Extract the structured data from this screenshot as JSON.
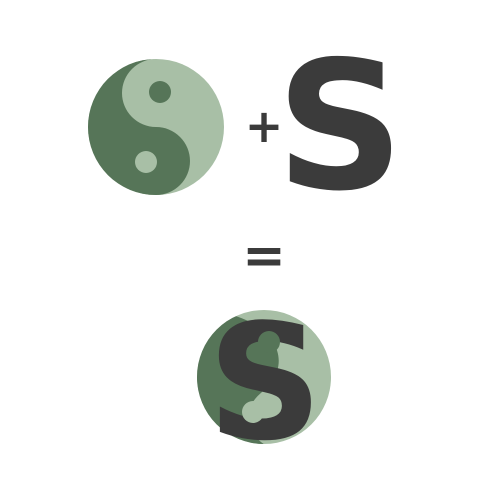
{
  "equation": {
    "plus_sign": "+",
    "equals_sign": "=",
    "letter": "S"
  },
  "colors": {
    "dark_green": "#567558",
    "light_green": "#a8bfa6",
    "letter_gray": "#3b3b3b",
    "background": "#ffffff"
  },
  "icons": {
    "first_operand": "yin-yang-icon",
    "second_operand": "letter-s-icon",
    "result": "yin-yang-s-logo-icon"
  }
}
